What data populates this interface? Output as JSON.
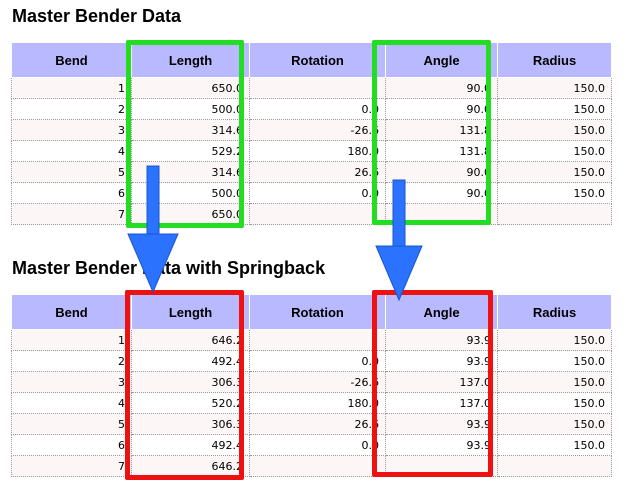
{
  "sections": [
    {
      "title": "Master Bender Data",
      "columns": [
        "Bend",
        "Length",
        "Rotation",
        "Angle",
        "Radius"
      ],
      "rows": [
        [
          "1",
          "650.0",
          "",
          "90.0",
          "150.0"
        ],
        [
          "2",
          "500.0",
          "0.0",
          "90.0",
          "150.0"
        ],
        [
          "3",
          "314.6",
          "-26.6",
          "131.8",
          "150.0"
        ],
        [
          "4",
          "529.2",
          "180.0",
          "131.8",
          "150.0"
        ],
        [
          "5",
          "314.6",
          "26.6",
          "90.0",
          "150.0"
        ],
        [
          "6",
          "500.0",
          "0.0",
          "90.0",
          "150.0"
        ],
        [
          "7",
          "650.0",
          "",
          "",
          ""
        ]
      ]
    },
    {
      "title": "Master Bender Data with Springback",
      "columns": [
        "Bend",
        "Length",
        "Rotation",
        "Angle",
        "Radius"
      ],
      "rows": [
        [
          "1",
          "646.2",
          "",
          "93.9",
          "150.0"
        ],
        [
          "2",
          "492.4",
          "0.0",
          "93.9",
          "150.0"
        ],
        [
          "3",
          "306.3",
          "-26.6",
          "137.0",
          "150.0"
        ],
        [
          "4",
          "520.2",
          "180.0",
          "137.0",
          "150.0"
        ],
        [
          "5",
          "306.3",
          "26.6",
          "93.9",
          "150.0"
        ],
        [
          "6",
          "492.4",
          "0.0",
          "93.9",
          "150.0"
        ],
        [
          "7",
          "646.2",
          "",
          "",
          ""
        ]
      ]
    }
  ],
  "colors": {
    "header_bg": "#b9b9ff",
    "highlight_top": "#22dd22",
    "highlight_bottom": "#ee1111",
    "arrow": "#2a72ff"
  }
}
